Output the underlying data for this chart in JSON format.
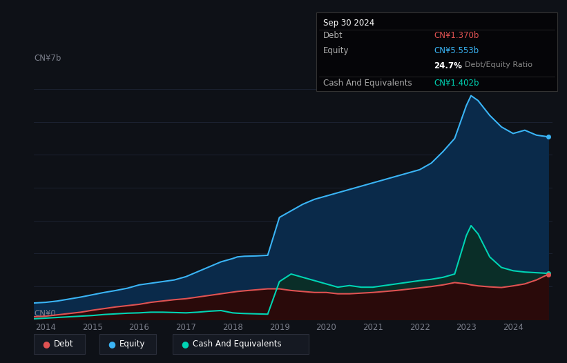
{
  "background_color": "#0e1117",
  "plot_bg_color": "#0e1117",
  "grid_color": "#1e2535",
  "x_tick_color": "#7a7e8a",
  "y_tick_color": "#7a7e8a",
  "tooltip": {
    "date": "Sep 30 2024",
    "debt_label": "Debt",
    "debt_value": "CN¥1.370b",
    "debt_color": "#e05252",
    "equity_label": "Equity",
    "equity_value": "CN¥5.553b",
    "equity_color": "#3ab4f5",
    "ratio_value": "24.7%",
    "ratio_label": "Debt/Equity Ratio",
    "ratio_color_num": "#ffffff",
    "ratio_color_text": "#888888",
    "cash_label": "Cash And Equivalents",
    "cash_value": "CN¥1.402b",
    "cash_color": "#00d4b4",
    "box_bg": "#050508",
    "box_border": "#333333",
    "label_color": "#aaaaaa",
    "title_color": "#ffffff"
  },
  "legend": {
    "debt_label": "Debt",
    "equity_label": "Equity",
    "cash_label": "Cash And Equivalents",
    "debt_color": "#e05252",
    "equity_color": "#3ab4f5",
    "cash_color": "#00d4b4",
    "bg_color": "#151922",
    "border_color": "#2a2e3a"
  },
  "years": [
    2013.75,
    2014.0,
    2014.25,
    2014.5,
    2014.75,
    2015.0,
    2015.25,
    2015.5,
    2015.75,
    2016.0,
    2016.25,
    2016.5,
    2016.75,
    2017.0,
    2017.25,
    2017.5,
    2017.75,
    2018.0,
    2018.1,
    2018.25,
    2018.5,
    2018.75,
    2019.0,
    2019.25,
    2019.5,
    2019.75,
    2020.0,
    2020.25,
    2020.5,
    2020.75,
    2021.0,
    2021.25,
    2021.5,
    2021.75,
    2022.0,
    2022.25,
    2022.5,
    2022.75,
    2023.0,
    2023.1,
    2023.25,
    2023.5,
    2023.75,
    2024.0,
    2024.25,
    2024.5,
    2024.75
  ],
  "equity": [
    0.5,
    0.52,
    0.56,
    0.62,
    0.68,
    0.75,
    0.82,
    0.88,
    0.95,
    1.05,
    1.1,
    1.15,
    1.2,
    1.3,
    1.45,
    1.6,
    1.75,
    1.85,
    1.9,
    1.92,
    1.93,
    1.95,
    3.1,
    3.3,
    3.5,
    3.65,
    3.75,
    3.85,
    3.95,
    4.05,
    4.15,
    4.25,
    4.35,
    4.45,
    4.55,
    4.75,
    5.1,
    5.5,
    6.5,
    6.8,
    6.65,
    6.2,
    5.85,
    5.65,
    5.75,
    5.6,
    5.55
  ],
  "debt": [
    0.08,
    0.1,
    0.14,
    0.18,
    0.22,
    0.28,
    0.33,
    0.38,
    0.42,
    0.46,
    0.52,
    0.56,
    0.6,
    0.63,
    0.68,
    0.73,
    0.78,
    0.83,
    0.85,
    0.87,
    0.9,
    0.93,
    0.93,
    0.88,
    0.85,
    0.82,
    0.82,
    0.78,
    0.78,
    0.8,
    0.82,
    0.85,
    0.88,
    0.92,
    0.96,
    1.0,
    1.05,
    1.12,
    1.08,
    1.05,
    1.02,
    0.99,
    0.97,
    1.02,
    1.08,
    1.2,
    1.37
  ],
  "cash": [
    0.02,
    0.04,
    0.06,
    0.08,
    0.1,
    0.12,
    0.15,
    0.17,
    0.19,
    0.2,
    0.22,
    0.22,
    0.21,
    0.2,
    0.22,
    0.25,
    0.27,
    0.2,
    0.19,
    0.18,
    0.17,
    0.16,
    1.15,
    1.38,
    1.28,
    1.18,
    1.08,
    0.98,
    1.03,
    0.98,
    0.98,
    1.03,
    1.08,
    1.13,
    1.18,
    1.22,
    1.28,
    1.38,
    2.55,
    2.85,
    2.6,
    1.9,
    1.58,
    1.48,
    1.44,
    1.42,
    1.4
  ],
  "ylim": [
    0,
    7.5
  ],
  "xlim_min": 2013.75,
  "xlim_max": 2024.85,
  "equity_line_color": "#3ab4f5",
  "debt_line_color": "#e05252",
  "cash_line_color": "#00d4b4",
  "equity_fill_color": "#0a2a4a",
  "debt_fill_color": "#2a0a0a",
  "cash_fill_color": "#0a2e28"
}
